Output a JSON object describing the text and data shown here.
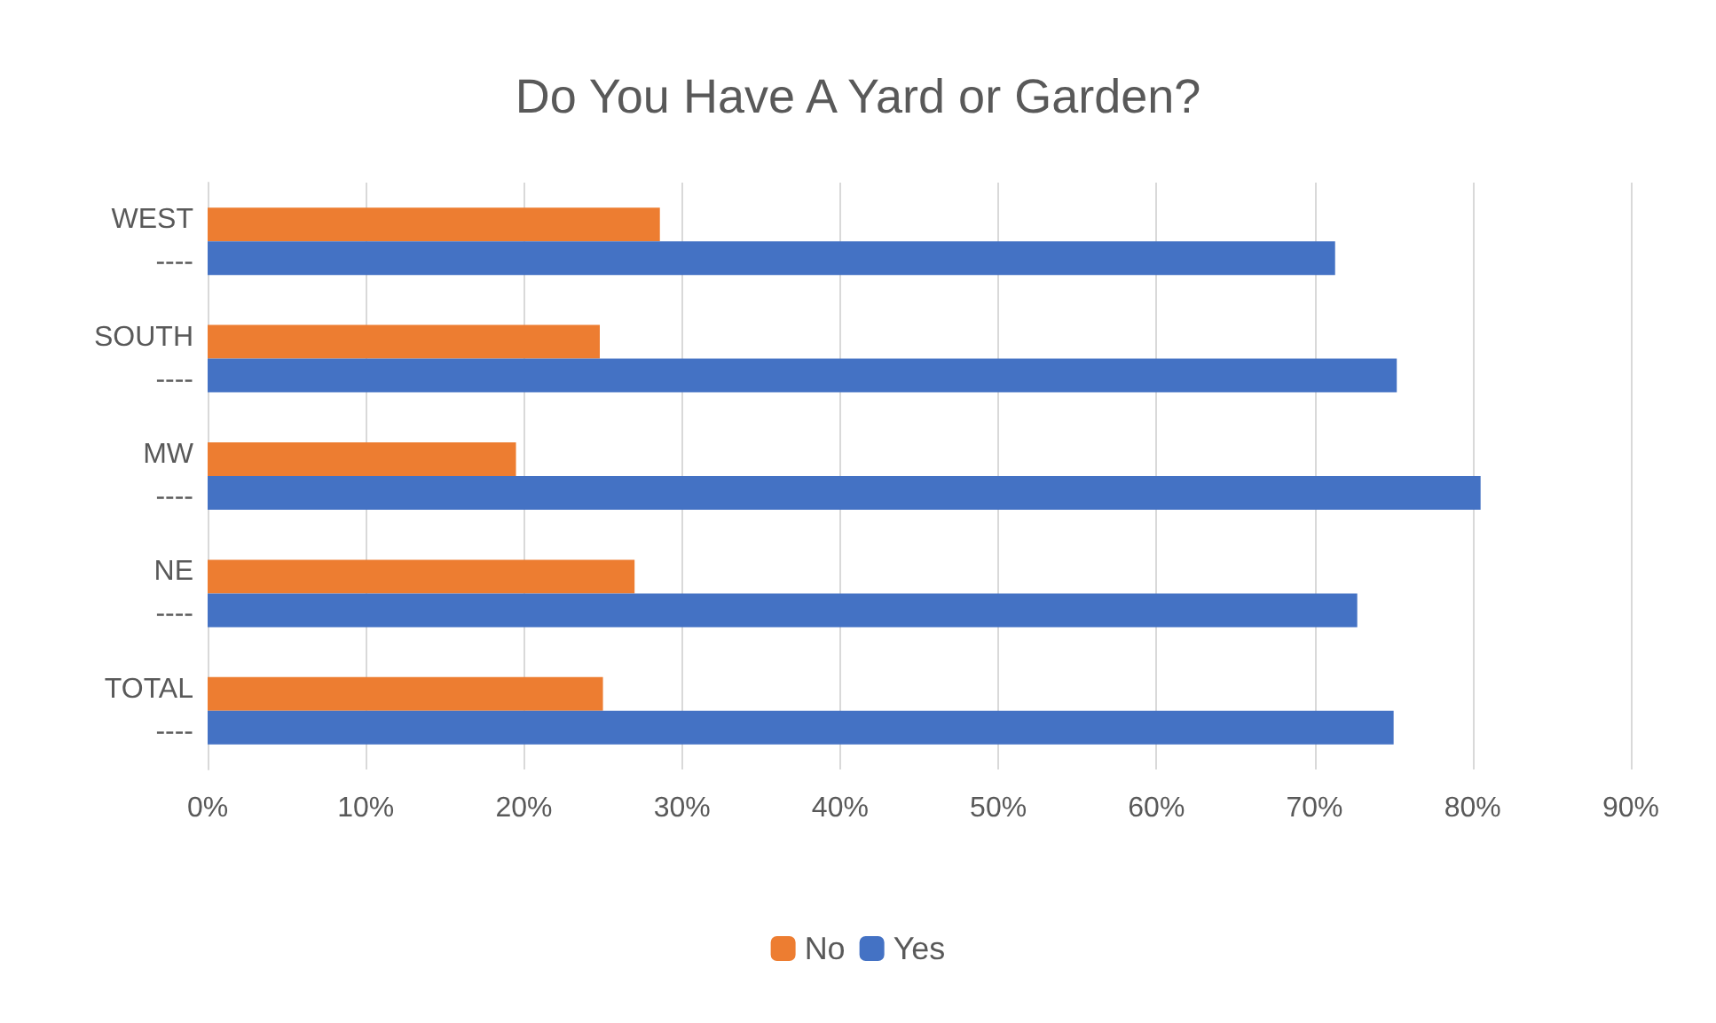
{
  "chart_data": {
    "type": "bar",
    "orientation": "horizontal",
    "title": "Do You Have A Yard or Garden?",
    "categories": [
      "WEST\n----",
      "SOUTH\n----",
      "MW\n----",
      "NE\n----",
      "TOTAL\n----"
    ],
    "series": [
      {
        "name": "No",
        "color": "#ed7d31",
        "values": [
          28.6,
          24.8,
          19.5,
          27.0,
          25.0
        ]
      },
      {
        "name": "Yes",
        "color": "#4472c4",
        "values": [
          71.3,
          75.2,
          80.5,
          72.7,
          75.0
        ]
      }
    ],
    "xlim": [
      0,
      90
    ],
    "xticks": [
      {
        "value": 0,
        "label": "0%"
      },
      {
        "value": 10,
        "label": "10%"
      },
      {
        "value": 20,
        "label": "20%"
      },
      {
        "value": 30,
        "label": "30%"
      },
      {
        "value": 40,
        "label": "40%"
      },
      {
        "value": 50,
        "label": "50%"
      },
      {
        "value": 60,
        "label": "60%"
      },
      {
        "value": 70,
        "label": "70%"
      },
      {
        "value": 80,
        "label": "80%"
      },
      {
        "value": 90,
        "label": "90%"
      }
    ],
    "grid": "x",
    "legend": "bottom"
  }
}
